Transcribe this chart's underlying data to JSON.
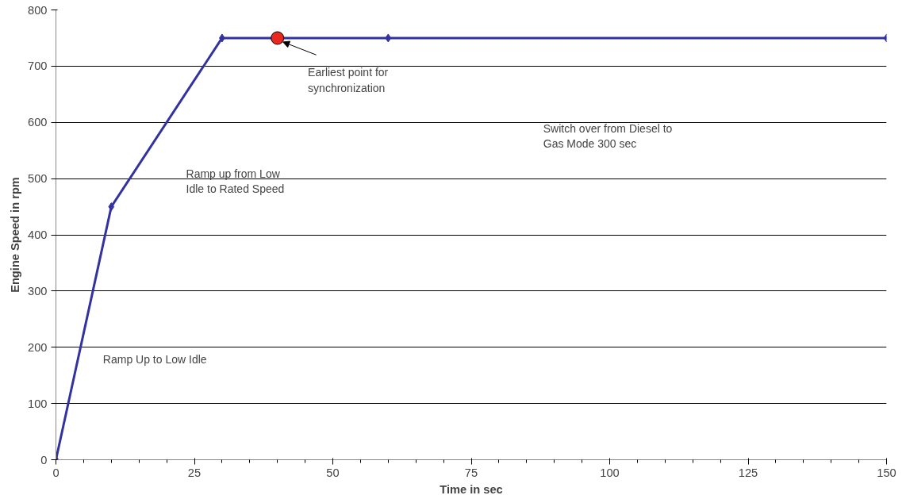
{
  "chart_data": {
    "type": "line",
    "xlabel": "Time in sec",
    "ylabel": "Engine Speed in rpm",
    "xlim": [
      0,
      150
    ],
    "xticks": [
      0,
      25,
      50,
      75,
      100,
      125,
      150
    ],
    "ylim": [
      0,
      800
    ],
    "yticks": [
      0,
      100,
      200,
      300,
      400,
      500,
      600,
      700,
      800
    ],
    "grid": "y",
    "series": [
      {
        "color": "#3232a0",
        "x": [
          0,
          10,
          30,
          60,
          150
        ],
        "values": [
          0,
          450,
          750,
          750,
          750
        ],
        "marker": "diamond"
      },
      {
        "type": "scatter",
        "color": "#e8281e",
        "x": [
          40
        ],
        "values": [
          750
        ],
        "marker": "circle"
      }
    ],
    "annotations": [
      "Ramp Up to Low Idle",
      "Ramp up from Low\nIdle to Rated Speed",
      {
        "text": "Earliest point for\nsynchronization",
        "x": 40,
        "y": 750
      },
      "Switch over from Diesel to\nGas Mode 300 sec"
    ]
  }
}
